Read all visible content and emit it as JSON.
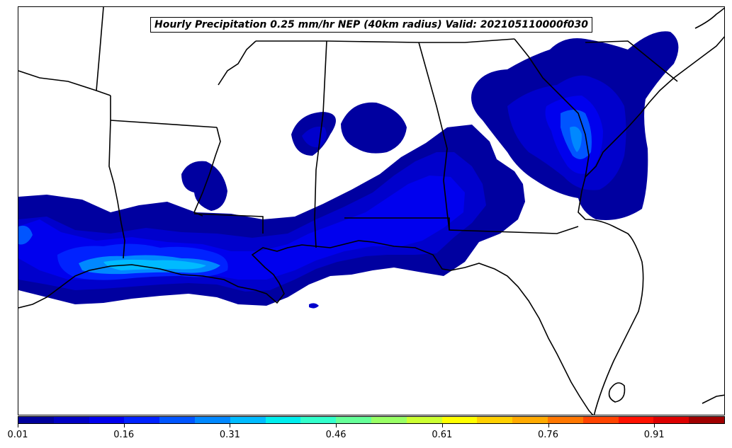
{
  "title": "Hourly Precipitation 0.25 mm/hr NEP (40km radius) Valid: 202105110000f030",
  "colorbar": {
    "colors": [
      "#00009c",
      "#0000c4",
      "#0000ee",
      "#0022ff",
      "#0055ff",
      "#0088ff",
      "#00bbff",
      "#00eeee",
      "#33ffcc",
      "#66ff99",
      "#99ff66",
      "#ccff33",
      "#ffff00",
      "#ffd000",
      "#ffaa00",
      "#ff7700",
      "#ff4400",
      "#ff1100",
      "#dd0000",
      "#a00000"
    ],
    "tick_labels": [
      "0.01",
      "0.16",
      "0.31",
      "0.46",
      "0.61",
      "0.76",
      "0.91"
    ]
  },
  "chart_data": {
    "type": "heatmap",
    "title": "Hourly Precipitation 0.25 mm/hr NEP (40km radius) Valid: 202105110000f030",
    "colorbar_range": [
      0.01,
      1.0
    ],
    "colorbar_ticks": [
      0.01,
      0.16,
      0.31,
      0.46,
      0.61,
      0.76,
      0.91
    ]
  }
}
